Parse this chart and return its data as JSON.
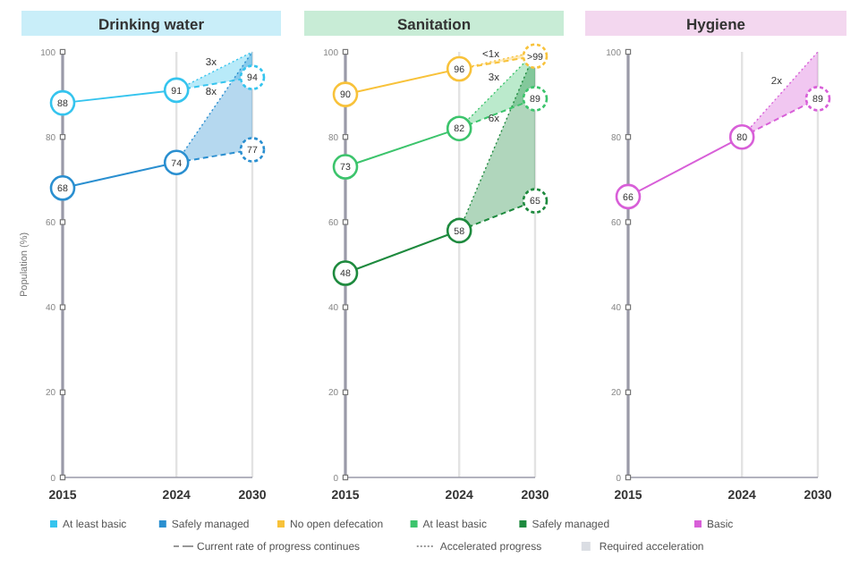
{
  "chart_data": [
    {
      "type": "line",
      "title": "Drinking water",
      "ylabel": "Population (%)",
      "xlim": [
        2015,
        2030
      ],
      "xticks": [
        2015,
        2024,
        2030
      ],
      "ylim": [
        0,
        100
      ],
      "yticks": [
        0,
        20,
        40,
        60,
        80,
        100
      ],
      "grid": "x",
      "marker": "circle",
      "legend": "bottom",
      "series": [
        {
          "name": "At least basic",
          "color": "#35c4ee",
          "x": [
            2015,
            2024
          ],
          "values": [
            88,
            91
          ],
          "value_labels": [
            "88",
            "91"
          ]
        },
        {
          "name": "Safely managed",
          "color": "#2a8fd0",
          "x": [
            2015,
            2024
          ],
          "values": [
            68,
            74
          ],
          "value_labels": [
            "68",
            "74"
          ]
        },
        {
          "color": "#35c4ee",
          "x": [
            2024,
            2030
          ],
          "values": [
            91,
            94
          ],
          "lower": [
            91,
            94
          ],
          "upper": [
            91,
            100
          ],
          "line_style": "dashed",
          "value_labels": [
            null,
            "94"
          ]
        },
        {
          "color": "#2a8fd0",
          "x": [
            2024,
            2030
          ],
          "values": [
            74,
            77
          ],
          "lower": [
            74,
            77
          ],
          "upper": [
            74,
            100
          ],
          "line_style": "dashed",
          "value_labels": [
            null,
            "77"
          ]
        }
      ],
      "annotations": [
        "3x",
        "8x"
      ]
    },
    {
      "type": "line",
      "title": "Sanitation",
      "xlim": [
        2015,
        2030
      ],
      "xticks": [
        2015,
        2024,
        2030
      ],
      "ylim": [
        0,
        100
      ],
      "yticks": [
        0,
        20,
        40,
        60,
        80,
        100
      ],
      "grid": "x",
      "marker": "circle",
      "legend": "bottom",
      "series": [
        {
          "name": "No open defecation",
          "color": "#f8c23a",
          "x": [
            2015,
            2024
          ],
          "values": [
            90,
            96
          ],
          "value_labels": [
            "90",
            "96"
          ]
        },
        {
          "name": "At least basic",
          "color": "#3cc46c",
          "x": [
            2015,
            2024
          ],
          "values": [
            73,
            82
          ],
          "value_labels": [
            "73",
            "82"
          ]
        },
        {
          "name": "Safely managed",
          "color": "#1e8a3e",
          "x": [
            2015,
            2024
          ],
          "values": [
            48,
            58
          ],
          "value_labels": [
            "48",
            "58"
          ]
        },
        {
          "color": "#f8c23a",
          "x": [
            2024,
            2030
          ],
          "values": [
            96,
            99
          ],
          "lower": [
            96,
            99
          ],
          "upper": [
            96,
            100
          ],
          "line_style": "dashed",
          "value_labels": [
            null,
            ">99"
          ]
        },
        {
          "color": "#3cc46c",
          "x": [
            2024,
            2030
          ],
          "values": [
            82,
            89
          ],
          "lower": [
            82,
            89
          ],
          "upper": [
            82,
            100
          ],
          "line_style": "dashed",
          "value_labels": [
            null,
            "89"
          ]
        },
        {
          "color": "#1e8a3e",
          "x": [
            2024,
            2030
          ],
          "values": [
            58,
            65
          ],
          "lower": [
            58,
            65
          ],
          "upper": [
            58,
            100
          ],
          "line_style": "dashed",
          "value_labels": [
            null,
            "65"
          ]
        }
      ],
      "annotations": [
        "<1x",
        "3x",
        "6x",
        "Current rate of progress continues",
        "Accelerated progress",
        "Required acceleration"
      ]
    },
    {
      "type": "line",
      "title": "Hygiene",
      "xlim": [
        2015,
        2030
      ],
      "xticks": [
        2015,
        2024,
        2030
      ],
      "ylim": [
        0,
        100
      ],
      "yticks": [
        0,
        20,
        40,
        60,
        80,
        100
      ],
      "grid": "x",
      "marker": "circle",
      "legend": "bottom",
      "series": [
        {
          "name": "Basic",
          "color": "#d85fd8",
          "x": [
            2015,
            2024
          ],
          "values": [
            66,
            80
          ],
          "value_labels": [
            "66",
            "80"
          ]
        },
        {
          "color": "#d85fd8",
          "x": [
            2024,
            2030
          ],
          "values": [
            80,
            89
          ],
          "lower": [
            80,
            89
          ],
          "upper": [
            80,
            100
          ],
          "line_style": "dashed",
          "value_labels": [
            null,
            "89"
          ]
        }
      ],
      "annotations": [
        "2x"
      ]
    }
  ]
}
